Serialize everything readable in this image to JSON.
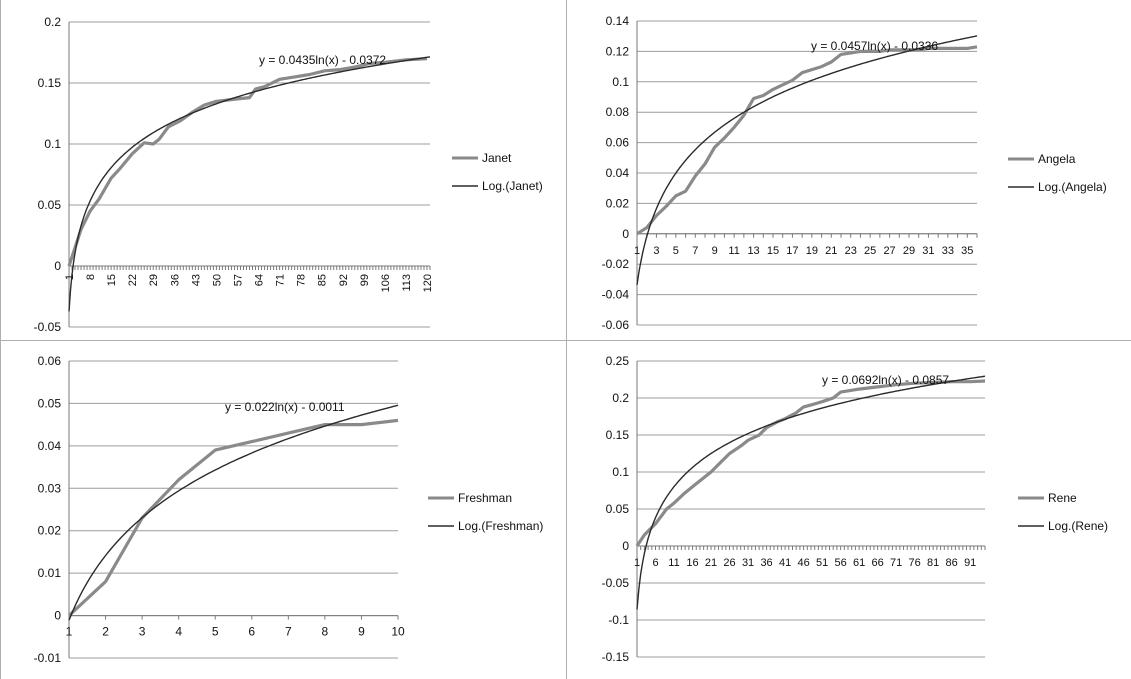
{
  "colors": {
    "data_line": "#8a8a8a",
    "trend_line": "#2b2b2b",
    "grid": "#9c9c9c",
    "axis": "#7a7a7a",
    "text": "#111111"
  },
  "chart_data": [
    {
      "type": "line",
      "title": "",
      "xlabel": "",
      "ylabel": "",
      "x_count": 121,
      "x_ticks": [
        "1",
        "8",
        "15",
        "22",
        "29",
        "36",
        "43",
        "50",
        "57",
        "64",
        "71",
        "78",
        "85",
        "92",
        "99",
        "106",
        "113",
        "120"
      ],
      "x_tick_rotation": "vertical",
      "y_ticks": [
        "-0.05",
        "0",
        "0.05",
        "0.1",
        "0.15",
        "0.2"
      ],
      "ylim": [
        -0.05,
        0.2
      ],
      "grid": true,
      "legend_position": "right",
      "series": [
        {
          "name": "Janet",
          "x": [
            1,
            3,
            5,
            8,
            11,
            15,
            18,
            22,
            26,
            29,
            31,
            34,
            38,
            42,
            46,
            50,
            57,
            61,
            63,
            66,
            71,
            76,
            81,
            86,
            91,
            96,
            101,
            106,
            113,
            120
          ],
          "y": [
            0,
            0.015,
            0.03,
            0.045,
            0.055,
            0.072,
            0.08,
            0.092,
            0.101,
            0.1,
            0.104,
            0.114,
            0.119,
            0.126,
            0.132,
            0.135,
            0.137,
            0.138,
            0.145,
            0.147,
            0.153,
            0.155,
            0.157,
            0.16,
            0.161,
            0.163,
            0.166,
            0.167,
            0.169,
            0.17
          ]
        },
        {
          "name": "Log.(Janet)",
          "trendline": {
            "kind": "log",
            "slope": 0.0435,
            "intercept": -0.0372
          }
        }
      ],
      "annotations": [
        {
          "text": "y = 0.0435ln(x) - 0.0372"
        }
      ]
    },
    {
      "type": "line",
      "title": "",
      "xlabel": "",
      "ylabel": "",
      "x_count": 36,
      "x_ticks": [
        "1",
        "3",
        "5",
        "7",
        "9",
        "11",
        "13",
        "15",
        "17",
        "19",
        "21",
        "23",
        "25",
        "27",
        "29",
        "31",
        "33",
        "35"
      ],
      "x_tick_rotation": "horizontal",
      "y_ticks": [
        "-0.06",
        "-0.04",
        "-0.02",
        "0",
        "0.02",
        "0.04",
        "0.06",
        "0.08",
        "0.1",
        "0.12",
        "0.14"
      ],
      "ylim": [
        -0.06,
        0.14
      ],
      "grid": true,
      "legend_position": "right",
      "series": [
        {
          "name": "Angela",
          "x": [
            1,
            2,
            3,
            4,
            5,
            6,
            7,
            8,
            9,
            10,
            11,
            12,
            13,
            14,
            15,
            16,
            17,
            18,
            19,
            20,
            21,
            22,
            23,
            24,
            25,
            26,
            27,
            28,
            29,
            30,
            31,
            32,
            33,
            34,
            35,
            36
          ],
          "y": [
            0,
            0.004,
            0.012,
            0.018,
            0.025,
            0.028,
            0.038,
            0.046,
            0.057,
            0.063,
            0.07,
            0.078,
            0.089,
            0.091,
            0.095,
            0.098,
            0.101,
            0.106,
            0.108,
            0.11,
            0.113,
            0.118,
            0.119,
            0.12,
            0.12,
            0.12,
            0.121,
            0.121,
            0.121,
            0.121,
            0.122,
            0.122,
            0.122,
            0.122,
            0.122,
            0.123
          ]
        },
        {
          "name": "Log.(Angela)",
          "trendline": {
            "kind": "log",
            "slope": 0.0457,
            "intercept": -0.0336
          }
        }
      ],
      "annotations": [
        {
          "text": "y = 0.0457ln(x) - 0.0336"
        }
      ]
    },
    {
      "type": "line",
      "title": "",
      "xlabel": "",
      "ylabel": "",
      "x_count": 10,
      "x_ticks": [
        "1",
        "2",
        "3",
        "4",
        "5",
        "6",
        "7",
        "8",
        "9",
        "10"
      ],
      "x_tick_rotation": "horizontal",
      "y_ticks": [
        "-0.01",
        "0",
        "0.01",
        "0.02",
        "0.03",
        "0.04",
        "0.05",
        "0.06"
      ],
      "ylim": [
        -0.01,
        0.06
      ],
      "grid": true,
      "legend_position": "right",
      "series": [
        {
          "name": "Freshman",
          "x": [
            1,
            2,
            3,
            4,
            5,
            6,
            7,
            8,
            9,
            10
          ],
          "y": [
            0,
            0.008,
            0.023,
            0.032,
            0.039,
            0.041,
            0.043,
            0.045,
            0.045,
            0.046
          ]
        },
        {
          "name": "Log.(Freshman)",
          "trendline": {
            "kind": "log",
            "slope": 0.022,
            "intercept": -0.0011
          }
        }
      ],
      "annotations": [
        {
          "text": "y = 0.022ln(x) - 0.0011"
        }
      ]
    },
    {
      "type": "line",
      "title": "",
      "xlabel": "",
      "ylabel": "",
      "x_count": 95,
      "x_ticks": [
        "1",
        "6",
        "11",
        "16",
        "21",
        "26",
        "31",
        "36",
        "41",
        "46",
        "51",
        "56",
        "61",
        "66",
        "71",
        "76",
        "81",
        "86",
        "91"
      ],
      "x_tick_rotation": "horizontal",
      "y_ticks": [
        "-0.15",
        "-0.1",
        "-0.05",
        "0",
        "0.05",
        "0.1",
        "0.15",
        "0.2",
        "0.25"
      ],
      "ylim": [
        -0.15,
        0.25
      ],
      "grid": true,
      "legend_position": "right",
      "series": [
        {
          "name": "Rene",
          "x": [
            1,
            3,
            6,
            9,
            11,
            14,
            16,
            19,
            21,
            24,
            26,
            29,
            31,
            34,
            36,
            39,
            41,
            44,
            46,
            49,
            51,
            54,
            56,
            61,
            66,
            71,
            76,
            81,
            86,
            91,
            95
          ],
          "y": [
            0,
            0.015,
            0.03,
            0.05,
            0.058,
            0.072,
            0.08,
            0.092,
            0.1,
            0.115,
            0.125,
            0.135,
            0.143,
            0.15,
            0.16,
            0.168,
            0.172,
            0.18,
            0.188,
            0.192,
            0.195,
            0.2,
            0.208,
            0.212,
            0.215,
            0.218,
            0.22,
            0.221,
            0.222,
            0.222,
            0.223
          ]
        },
        {
          "name": "Log.(Rene)",
          "trendline": {
            "kind": "log",
            "slope": 0.0692,
            "intercept": -0.0857
          }
        }
      ],
      "annotations": [
        {
          "text": "y = 0.0692ln(x) - 0.0857"
        }
      ]
    }
  ]
}
